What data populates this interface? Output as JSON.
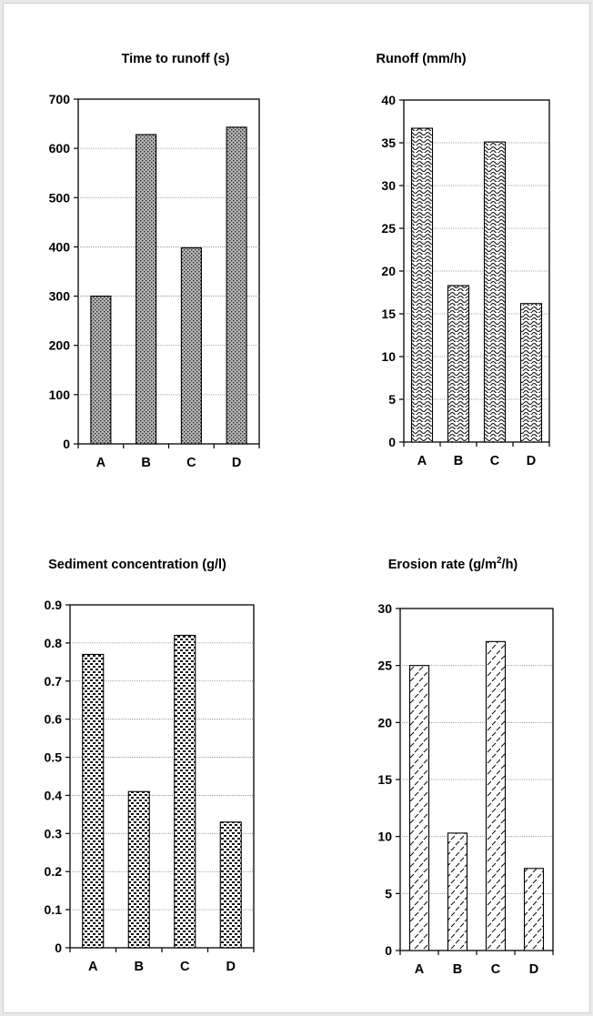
{
  "chart_data": [
    {
      "type": "bar",
      "title": "Time to runoff (s)",
      "categories": [
        "A",
        "B",
        "C",
        "D"
      ],
      "values": [
        300,
        628,
        398,
        643
      ],
      "ylim": [
        0,
        700
      ],
      "yticks": [
        "0",
        "100",
        "200",
        "300",
        "400",
        "500",
        "600",
        "700"
      ],
      "grid": true,
      "pattern": "dense-dots"
    },
    {
      "type": "bar",
      "title": "Runoff (mm/h)",
      "categories": [
        "A",
        "B",
        "C",
        "D"
      ],
      "values": [
        36.7,
        18.3,
        35.1,
        16.2
      ],
      "ylim": [
        0,
        40
      ],
      "yticks": [
        "0",
        "5",
        "10",
        "15",
        "20",
        "25",
        "30",
        "35",
        "40"
      ],
      "grid": true,
      "pattern": "waves"
    },
    {
      "type": "bar",
      "title": "Sediment concentration (g/l)",
      "categories": [
        "A",
        "B",
        "C",
        "D"
      ],
      "values": [
        0.77,
        0.41,
        0.82,
        0.33
      ],
      "ylim": [
        0,
        0.9
      ],
      "yticks": [
        "0",
        "0.1",
        "0.2",
        "0.3",
        "0.4",
        "0.5",
        "0.6",
        "0.7",
        "0.8",
        "0.9"
      ],
      "grid": true,
      "pattern": "checker"
    },
    {
      "type": "bar",
      "title": "Erosion rate (g/m",
      "title_sup": "2",
      "title_suffix": "/h)",
      "categories": [
        "A",
        "B",
        "C",
        "D"
      ],
      "values": [
        25.0,
        10.3,
        27.1,
        7.2
      ],
      "ylim": [
        0,
        30
      ],
      "yticks": [
        "0",
        "5",
        "10",
        "15",
        "20",
        "25",
        "30"
      ],
      "grid": true,
      "pattern": "dashes"
    }
  ]
}
